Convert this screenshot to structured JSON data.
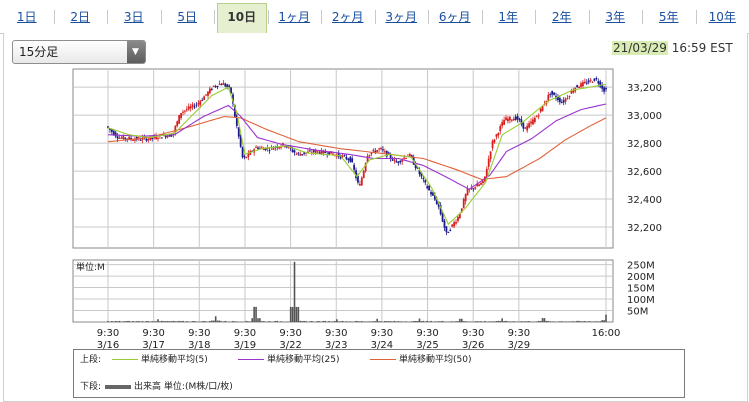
{
  "tabs": [
    {
      "label": "1日",
      "active": false
    },
    {
      "label": "2日",
      "active": false
    },
    {
      "label": "3日",
      "active": false
    },
    {
      "label": "5日",
      "active": false
    },
    {
      "label": "10日",
      "active": true
    },
    {
      "label": "1ヶ月",
      "active": false
    },
    {
      "label": "2ヶ月",
      "active": false
    },
    {
      "label": "3ヶ月",
      "active": false
    },
    {
      "label": "6ヶ月",
      "active": false
    },
    {
      "label": "1年",
      "active": false
    },
    {
      "label": "2年",
      "active": false
    },
    {
      "label": "3年",
      "active": false
    },
    {
      "label": "5年",
      "active": false
    },
    {
      "label": "10年",
      "active": false
    }
  ],
  "interval_select": {
    "value": "15分足"
  },
  "timestamp": {
    "date": "21/03/29",
    "time": "16:59 EST"
  },
  "colors": {
    "ma5": "#99cc33",
    "ma25": "#9933cc",
    "ma50": "#e0623a",
    "up": "#d81e1e",
    "down": "#1a1a8a",
    "volume": "#555555",
    "grid": "#c8c8c8"
  },
  "legend": {
    "upper_label": "上段:",
    "lower_label": "下段:",
    "ma5": "単純移動平均(5)",
    "ma25": "単純移動平均(25)",
    "ma50": "単純移動平均(50)",
    "volume": "出来高 単位:(M株/口/枚)"
  },
  "chart_data": [
    {
      "type": "candlestick",
      "x_ticks": [
        [
          "9:30",
          "3/16"
        ],
        [
          "9:30",
          "3/17"
        ],
        [
          "9:30",
          "3/18"
        ],
        [
          "9:30",
          "3/19"
        ],
        [
          "9:30",
          "3/22"
        ],
        [
          "9:30",
          "3/23"
        ],
        [
          "9:30",
          "3/24"
        ],
        [
          "9:30",
          "3/25"
        ],
        [
          "9:30",
          "3/26"
        ],
        [
          "9:30",
          "3/29"
        ],
        [
          "16:00",
          ""
        ]
      ],
      "y_ticks": [
        "32,200",
        "32,400",
        "32,600",
        "32,800",
        "33,000",
        "33,200"
      ],
      "ylim": [
        32050,
        33330
      ],
      "close_path": [
        [
          0,
          32920
        ],
        [
          0.3,
          32840
        ],
        [
          0.7,
          32830
        ],
        [
          1.0,
          32830
        ],
        [
          1.3,
          32850
        ],
        [
          1.6,
          32860
        ],
        [
          1.8,
          33020
        ],
        [
          2.2,
          33080
        ],
        [
          2.6,
          33210
        ],
        [
          2.8,
          33230
        ],
        [
          3.0,
          33180
        ],
        [
          3.1,
          33000
        ],
        [
          3.3,
          32680
        ],
        [
          3.6,
          32770
        ],
        [
          3.9,
          32760
        ],
        [
          4.3,
          32790
        ],
        [
          4.6,
          32720
        ],
        [
          5.0,
          32740
        ],
        [
          5.4,
          32730
        ],
        [
          5.7,
          32700
        ],
        [
          5.9,
          32680
        ],
        [
          6.1,
          32480
        ],
        [
          6.3,
          32720
        ],
        [
          6.6,
          32760
        ],
        [
          7.0,
          32660
        ],
        [
          7.3,
          32720
        ],
        [
          7.7,
          32500
        ],
        [
          8.0,
          32360
        ],
        [
          8.2,
          32150
        ],
        [
          8.5,
          32280
        ],
        [
          8.7,
          32460
        ],
        [
          9.1,
          32520
        ],
        [
          9.3,
          32800
        ],
        [
          9.6,
          32970
        ],
        [
          9.9,
          32980
        ],
        [
          10.1,
          32900
        ],
        [
          10.4,
          33000
        ],
        [
          10.7,
          33160
        ],
        [
          11.0,
          33090
        ],
        [
          11.3,
          33200
        ],
        [
          11.8,
          33260
        ],
        [
          12.0,
          33180
        ]
      ],
      "ma5_path": [
        [
          0,
          32910
        ],
        [
          0.5,
          32860
        ],
        [
          1.0,
          32840
        ],
        [
          1.6,
          32870
        ],
        [
          2.0,
          32990
        ],
        [
          2.5,
          33140
        ],
        [
          2.9,
          33200
        ],
        [
          3.1,
          33020
        ],
        [
          3.3,
          32720
        ],
        [
          3.7,
          32760
        ],
        [
          4.3,
          32780
        ],
        [
          4.8,
          32730
        ],
        [
          5.6,
          32710
        ],
        [
          6.0,
          32560
        ],
        [
          6.3,
          32680
        ],
        [
          6.8,
          32720
        ],
        [
          7.3,
          32700
        ],
        [
          7.8,
          32480
        ],
        [
          8.2,
          32220
        ],
        [
          8.6,
          32330
        ],
        [
          9.1,
          32520
        ],
        [
          9.5,
          32860
        ],
        [
          10.0,
          32950
        ],
        [
          10.6,
          33100
        ],
        [
          11.2,
          33180
        ],
        [
          12.0,
          33220
        ]
      ],
      "ma25_path": [
        [
          0,
          32860
        ],
        [
          0.8,
          32850
        ],
        [
          1.6,
          32860
        ],
        [
          2.3,
          32990
        ],
        [
          2.9,
          33070
        ],
        [
          3.2,
          32990
        ],
        [
          3.6,
          32840
        ],
        [
          4.2,
          32790
        ],
        [
          5.0,
          32750
        ],
        [
          5.8,
          32720
        ],
        [
          6.4,
          32690
        ],
        [
          7.0,
          32690
        ],
        [
          7.6,
          32640
        ],
        [
          8.2,
          32550
        ],
        [
          8.7,
          32470
        ],
        [
          9.2,
          32570
        ],
        [
          9.6,
          32740
        ],
        [
          10.2,
          32830
        ],
        [
          10.8,
          32960
        ],
        [
          11.4,
          33040
        ],
        [
          12.0,
          33080
        ]
      ],
      "ma50_path": [
        [
          0,
          32810
        ],
        [
          1.0,
          32840
        ],
        [
          2.0,
          32920
        ],
        [
          2.8,
          32990
        ],
        [
          3.2,
          32980
        ],
        [
          3.8,
          32900
        ],
        [
          4.6,
          32810
        ],
        [
          5.6,
          32760
        ],
        [
          6.8,
          32720
        ],
        [
          7.6,
          32690
        ],
        [
          8.4,
          32610
        ],
        [
          9.0,
          32540
        ],
        [
          9.6,
          32560
        ],
        [
          10.4,
          32690
        ],
        [
          11.0,
          32820
        ],
        [
          11.6,
          32920
        ],
        [
          12.0,
          32980
        ]
      ]
    },
    {
      "type": "bar",
      "title": "",
      "ylabel": "単位:M",
      "y_ticks": [
        "250M",
        "200M",
        "150M",
        "100M",
        "50M"
      ],
      "ylim": [
        0,
        270
      ],
      "spikes": [
        [
          1.2,
          12
        ],
        [
          2.6,
          25
        ],
        [
          3.55,
          66
        ],
        [
          4.5,
          262
        ],
        [
          5.5,
          12
        ],
        [
          6.5,
          14
        ],
        [
          7.5,
          15
        ],
        [
          8.5,
          14
        ],
        [
          9.5,
          16
        ],
        [
          10.5,
          17
        ],
        [
          12.0,
          32
        ]
      ]
    }
  ]
}
